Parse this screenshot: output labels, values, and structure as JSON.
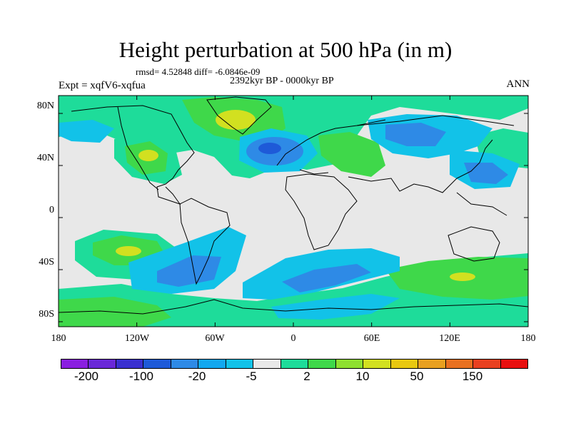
{
  "title": "Height perturbation at 500 hPa (in m)",
  "stats": "rmsd= 4.52848 diff= -6.0846e-09",
  "period": "2392kyr BP - 0000kyr BP",
  "experiment": "Expt = xqfV6-xqfua",
  "season": "ANN",
  "x_ticks": [
    "180",
    "120W",
    "60W",
    "0",
    "60E",
    "120E",
    "180"
  ],
  "y_ticks": [
    "80N",
    "40N",
    "0",
    "40S",
    "80S"
  ],
  "colorbar": {
    "colors": [
      "#8a1fe0",
      "#6a28d8",
      "#3a30d0",
      "#1e5ad8",
      "#2e8ae6",
      "#12a8f0",
      "#12c2e8",
      "#e8e8e8",
      "#1edc9a",
      "#3fd84a",
      "#8ee030",
      "#d2e020",
      "#e8c810",
      "#e8a020",
      "#e87020",
      "#e84020",
      "#e80f0f"
    ],
    "labels": [
      "-200",
      "-100",
      "-20",
      "-5",
      "2",
      "10",
      "50",
      "150"
    ]
  },
  "map_colors": {
    "background": "#e8e8e8",
    "light_green": "#1edc9a",
    "green": "#3fd84a",
    "yellow_green": "#d2e020",
    "light_blue": "#12c2e8",
    "blue": "#2e8ae6",
    "dark_blue": "#1e5ad8"
  }
}
